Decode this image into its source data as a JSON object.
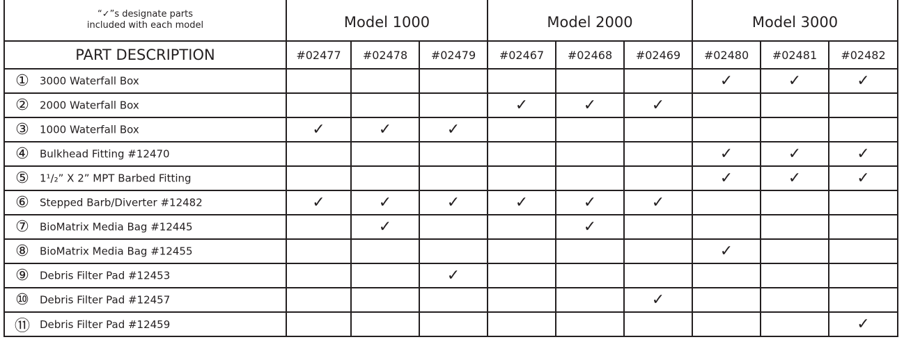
{
  "header": {
    "note_line1": "“✓”s designate parts",
    "note_line2": "included with each model",
    "part_description": "PART DESCRIPTION",
    "models": [
      "Model 1000",
      "Model 2000",
      "Model 3000"
    ],
    "part_numbers": [
      "#02477",
      "#02478",
      "#02479",
      "#02467",
      "#02468",
      "#02469",
      "#02480",
      "#02481",
      "#02482"
    ]
  },
  "check_mark": "✓",
  "rows": [
    {
      "num": "①",
      "desc": "3000  Waterfall Box",
      "checks": [
        0,
        0,
        0,
        0,
        0,
        0,
        1,
        1,
        1
      ]
    },
    {
      "num": "②",
      "desc": "2000  Waterfall Box",
      "checks": [
        0,
        0,
        0,
        1,
        1,
        1,
        0,
        0,
        0
      ]
    },
    {
      "num": "③",
      "desc": "1000  Waterfall Box",
      "checks": [
        1,
        1,
        1,
        0,
        0,
        0,
        0,
        0,
        0
      ]
    },
    {
      "num": "④",
      "desc": "Bulkhead Fitting #12470",
      "checks": [
        0,
        0,
        0,
        0,
        0,
        0,
        1,
        1,
        1
      ]
    },
    {
      "num": "⑤",
      "desc": "1¹/₂” X 2” MPT Barbed Fitting",
      "checks": [
        0,
        0,
        0,
        0,
        0,
        0,
        1,
        1,
        1
      ]
    },
    {
      "num": "⑥",
      "desc": "Stepped Barb/Diverter #12482",
      "checks": [
        1,
        1,
        1,
        1,
        1,
        1,
        0,
        0,
        0
      ]
    },
    {
      "num": "⑦",
      "desc": "BioMatrix Media Bag #12445",
      "checks": [
        0,
        1,
        0,
        0,
        1,
        0,
        0,
        0,
        0
      ]
    },
    {
      "num": "⑧",
      "desc": "BioMatrix Media Bag #12455",
      "checks": [
        0,
        0,
        0,
        0,
        0,
        0,
        1,
        0,
        0
      ]
    },
    {
      "num": "⑨",
      "desc": "Debris Filter Pad #12453",
      "checks": [
        0,
        0,
        1,
        0,
        0,
        0,
        0,
        0,
        0
      ]
    },
    {
      "num": "⑩",
      "desc": "Debris Filter Pad #12457",
      "checks": [
        0,
        0,
        0,
        0,
        0,
        1,
        0,
        0,
        0
      ]
    },
    {
      "num": "⑪",
      "desc": "Debris Filter Pad #12459",
      "checks": [
        0,
        0,
        0,
        0,
        0,
        0,
        0,
        0,
        1
      ]
    }
  ]
}
